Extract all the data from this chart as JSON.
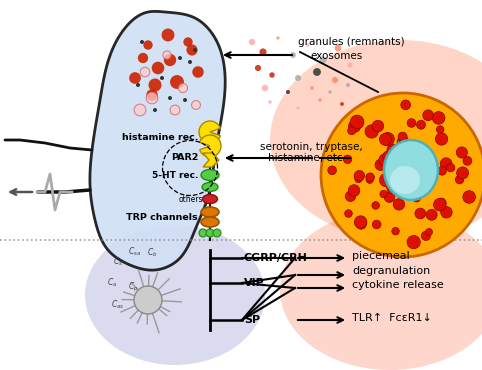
{
  "bg_color": "#ffffff",
  "neuron_body_color": "#d0dff5",
  "neuron_body_outline": "#111111",
  "mast_outer_color": "#ff8800",
  "mast_outer_edge": "#dd6600",
  "mast_granule_color": "#dd1100",
  "mast_granule_edge": "#aa0000",
  "mast_nucleus_color": "#88d8d8",
  "mast_nucleus_edge": "#44aaaa",
  "red_halo_color": "#ff5500",
  "blue_halo_color": "#aaaaee",
  "receptor_yellow": "#ffdd00",
  "receptor_yellow_edge": "#aa8800",
  "receptor_green": "#55cc44",
  "receptor_green_edge": "#228822",
  "receptor_red": "#cc2222",
  "receptor_red_edge": "#881111",
  "receptor_orange": "#dd7700",
  "receptor_orange_edge": "#995500",
  "dashed_color": "#888888",
  "labels": {
    "granules": "granules (remnants)",
    "exosomes": "exosomes",
    "histamine_rec": "histamine rec.",
    "PAR2": "PAR2",
    "five_HT": "5-HT rec.",
    "others": "others",
    "TRP": "TRP channels",
    "serotonin": "serotonin, tryptase,",
    "histamine_etc": "histamine, etc",
    "CGRP": "CGRP/CRH",
    "VIP": "VIP",
    "SP": "SP",
    "piecemeal": "piecemeal",
    "degranulation": "degranulation",
    "cytokine": "cytokine release",
    "TLR": "TLR↑  FcεR1↓"
  }
}
